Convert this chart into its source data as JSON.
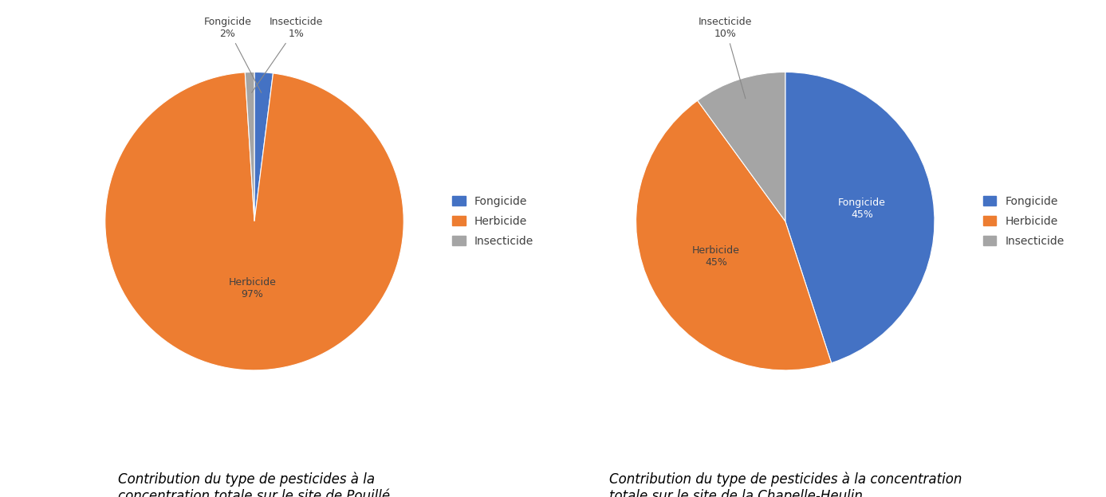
{
  "chart1": {
    "labels": [
      "Fongicide",
      "Herbicide",
      "Insecticide"
    ],
    "values": [
      2,
      97,
      1
    ],
    "colors": [
      "#4472C4",
      "#ED7D31",
      "#A5A5A5"
    ],
    "title": "Contribution du type de pesticides à la\nconcentration totale sur le site de Pouillé",
    "startangle": 90
  },
  "chart2": {
    "labels": [
      "Fongicide",
      "Herbicide",
      "Insecticide"
    ],
    "values": [
      45,
      45,
      10
    ],
    "colors": [
      "#4472C4",
      "#ED7D31",
      "#A5A5A5"
    ],
    "title": "Contribution du type de pesticides à la concentration\ntotale sur le site de la Chapelle-Heulin",
    "startangle": 90
  },
  "legend_labels": [
    "Fongicide",
    "Herbicide",
    "Insecticide"
  ],
  "legend_colors": [
    "#4472C4",
    "#ED7D31",
    "#A5A5A5"
  ],
  "background_color": "#FFFFFF",
  "text_color": "#404040",
  "label_fontsize": 9,
  "legend_fontsize": 10,
  "title_fontsize": 12
}
